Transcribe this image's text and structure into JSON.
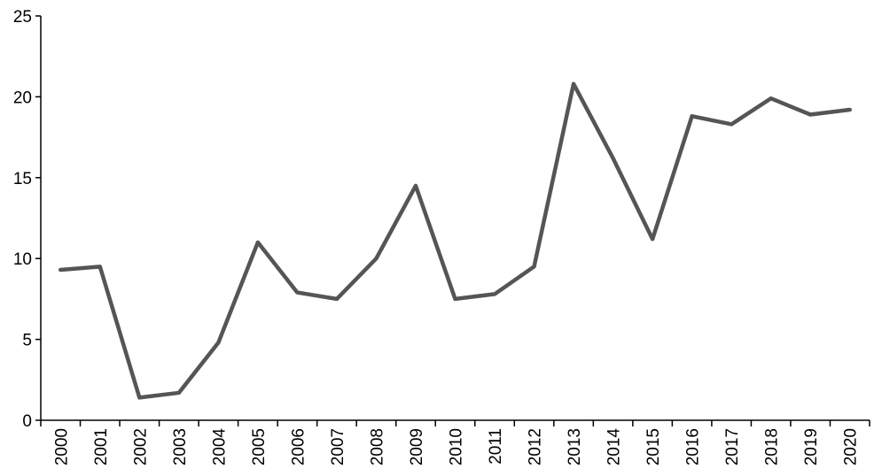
{
  "chart_data": {
    "type": "line",
    "title": "",
    "xlabel": "",
    "ylabel": "",
    "categories": [
      "2000",
      "2001",
      "2002",
      "2003",
      "2004",
      "2005",
      "2006",
      "2007",
      "2008",
      "2009",
      "2010",
      "2011",
      "2012",
      "2013",
      "2014",
      "2015",
      "2016",
      "2017",
      "2018",
      "2019",
      "2020"
    ],
    "series": [
      {
        "values": [
          9.3,
          9.5,
          1.4,
          1.7,
          4.8,
          11.0,
          7.9,
          7.5,
          10.0,
          14.5,
          7.5,
          7.8,
          9.5,
          20.8,
          16.2,
          11.2,
          18.8,
          18.3,
          19.9,
          18.9,
          19.2
        ],
        "color": "#555555"
      }
    ],
    "ylim": [
      0,
      25
    ],
    "yticks": [
      "0",
      "5",
      "10",
      "15",
      "20",
      "25"
    ],
    "grid": false,
    "legend": "none",
    "axis_color": "#000000"
  }
}
